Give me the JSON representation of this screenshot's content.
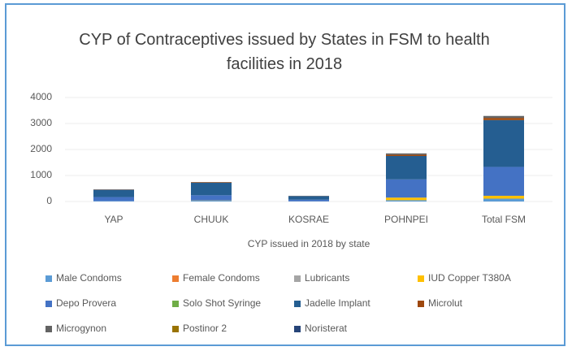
{
  "chart_data": {
    "type": "stacked_bar",
    "title": "CYP of Contraceptives issued by States in FSM to health facilities in 2018",
    "x_label": "CYP issued in 2018 by state",
    "categories": [
      "YAP",
      "CHUUK",
      "KOSRAE",
      "POHNPEI",
      "Total FSM"
    ],
    "ylim": [
      0,
      4000
    ],
    "yticks": [
      0,
      1000,
      2000,
      3000,
      4000
    ],
    "grid": true,
    "legend": "bottom",
    "series": [
      {
        "name": "Male Condoms",
        "color": "#5b9bd5",
        "values": [
          20,
          30,
          10,
          50,
          110
        ]
      },
      {
        "name": "Female Condoms",
        "color": "#ed7d31",
        "values": [
          0,
          0,
          0,
          0,
          0
        ]
      },
      {
        "name": "Lubricants",
        "color": "#a5a5a5",
        "values": [
          0,
          0,
          0,
          0,
          0
        ]
      },
      {
        "name": "IUD Copper T380A",
        "color": "#ffc000",
        "values": [
          0,
          10,
          0,
          100,
          110
        ]
      },
      {
        "name": "Depo Provera",
        "color": "#4472c4",
        "values": [
          150,
          200,
          60,
          700,
          1110
        ]
      },
      {
        "name": "Solo Shot Syringe",
        "color": "#70ad47",
        "values": [
          0,
          0,
          0,
          0,
          0
        ]
      },
      {
        "name": "Jadelle Implant",
        "color": "#255e91",
        "values": [
          280,
          480,
          140,
          900,
          1800
        ]
      },
      {
        "name": "Microlut",
        "color": "#9e480e",
        "values": [
          10,
          20,
          5,
          50,
          85
        ]
      },
      {
        "name": "Microgynon",
        "color": "#636363",
        "values": [
          10,
          10,
          5,
          50,
          75
        ]
      },
      {
        "name": "Postinor 2",
        "color": "#997300",
        "values": [
          0,
          0,
          0,
          0,
          0
        ]
      },
      {
        "name": "Noristerat",
        "color": "#264478",
        "values": [
          0,
          0,
          0,
          0,
          0
        ]
      }
    ]
  }
}
